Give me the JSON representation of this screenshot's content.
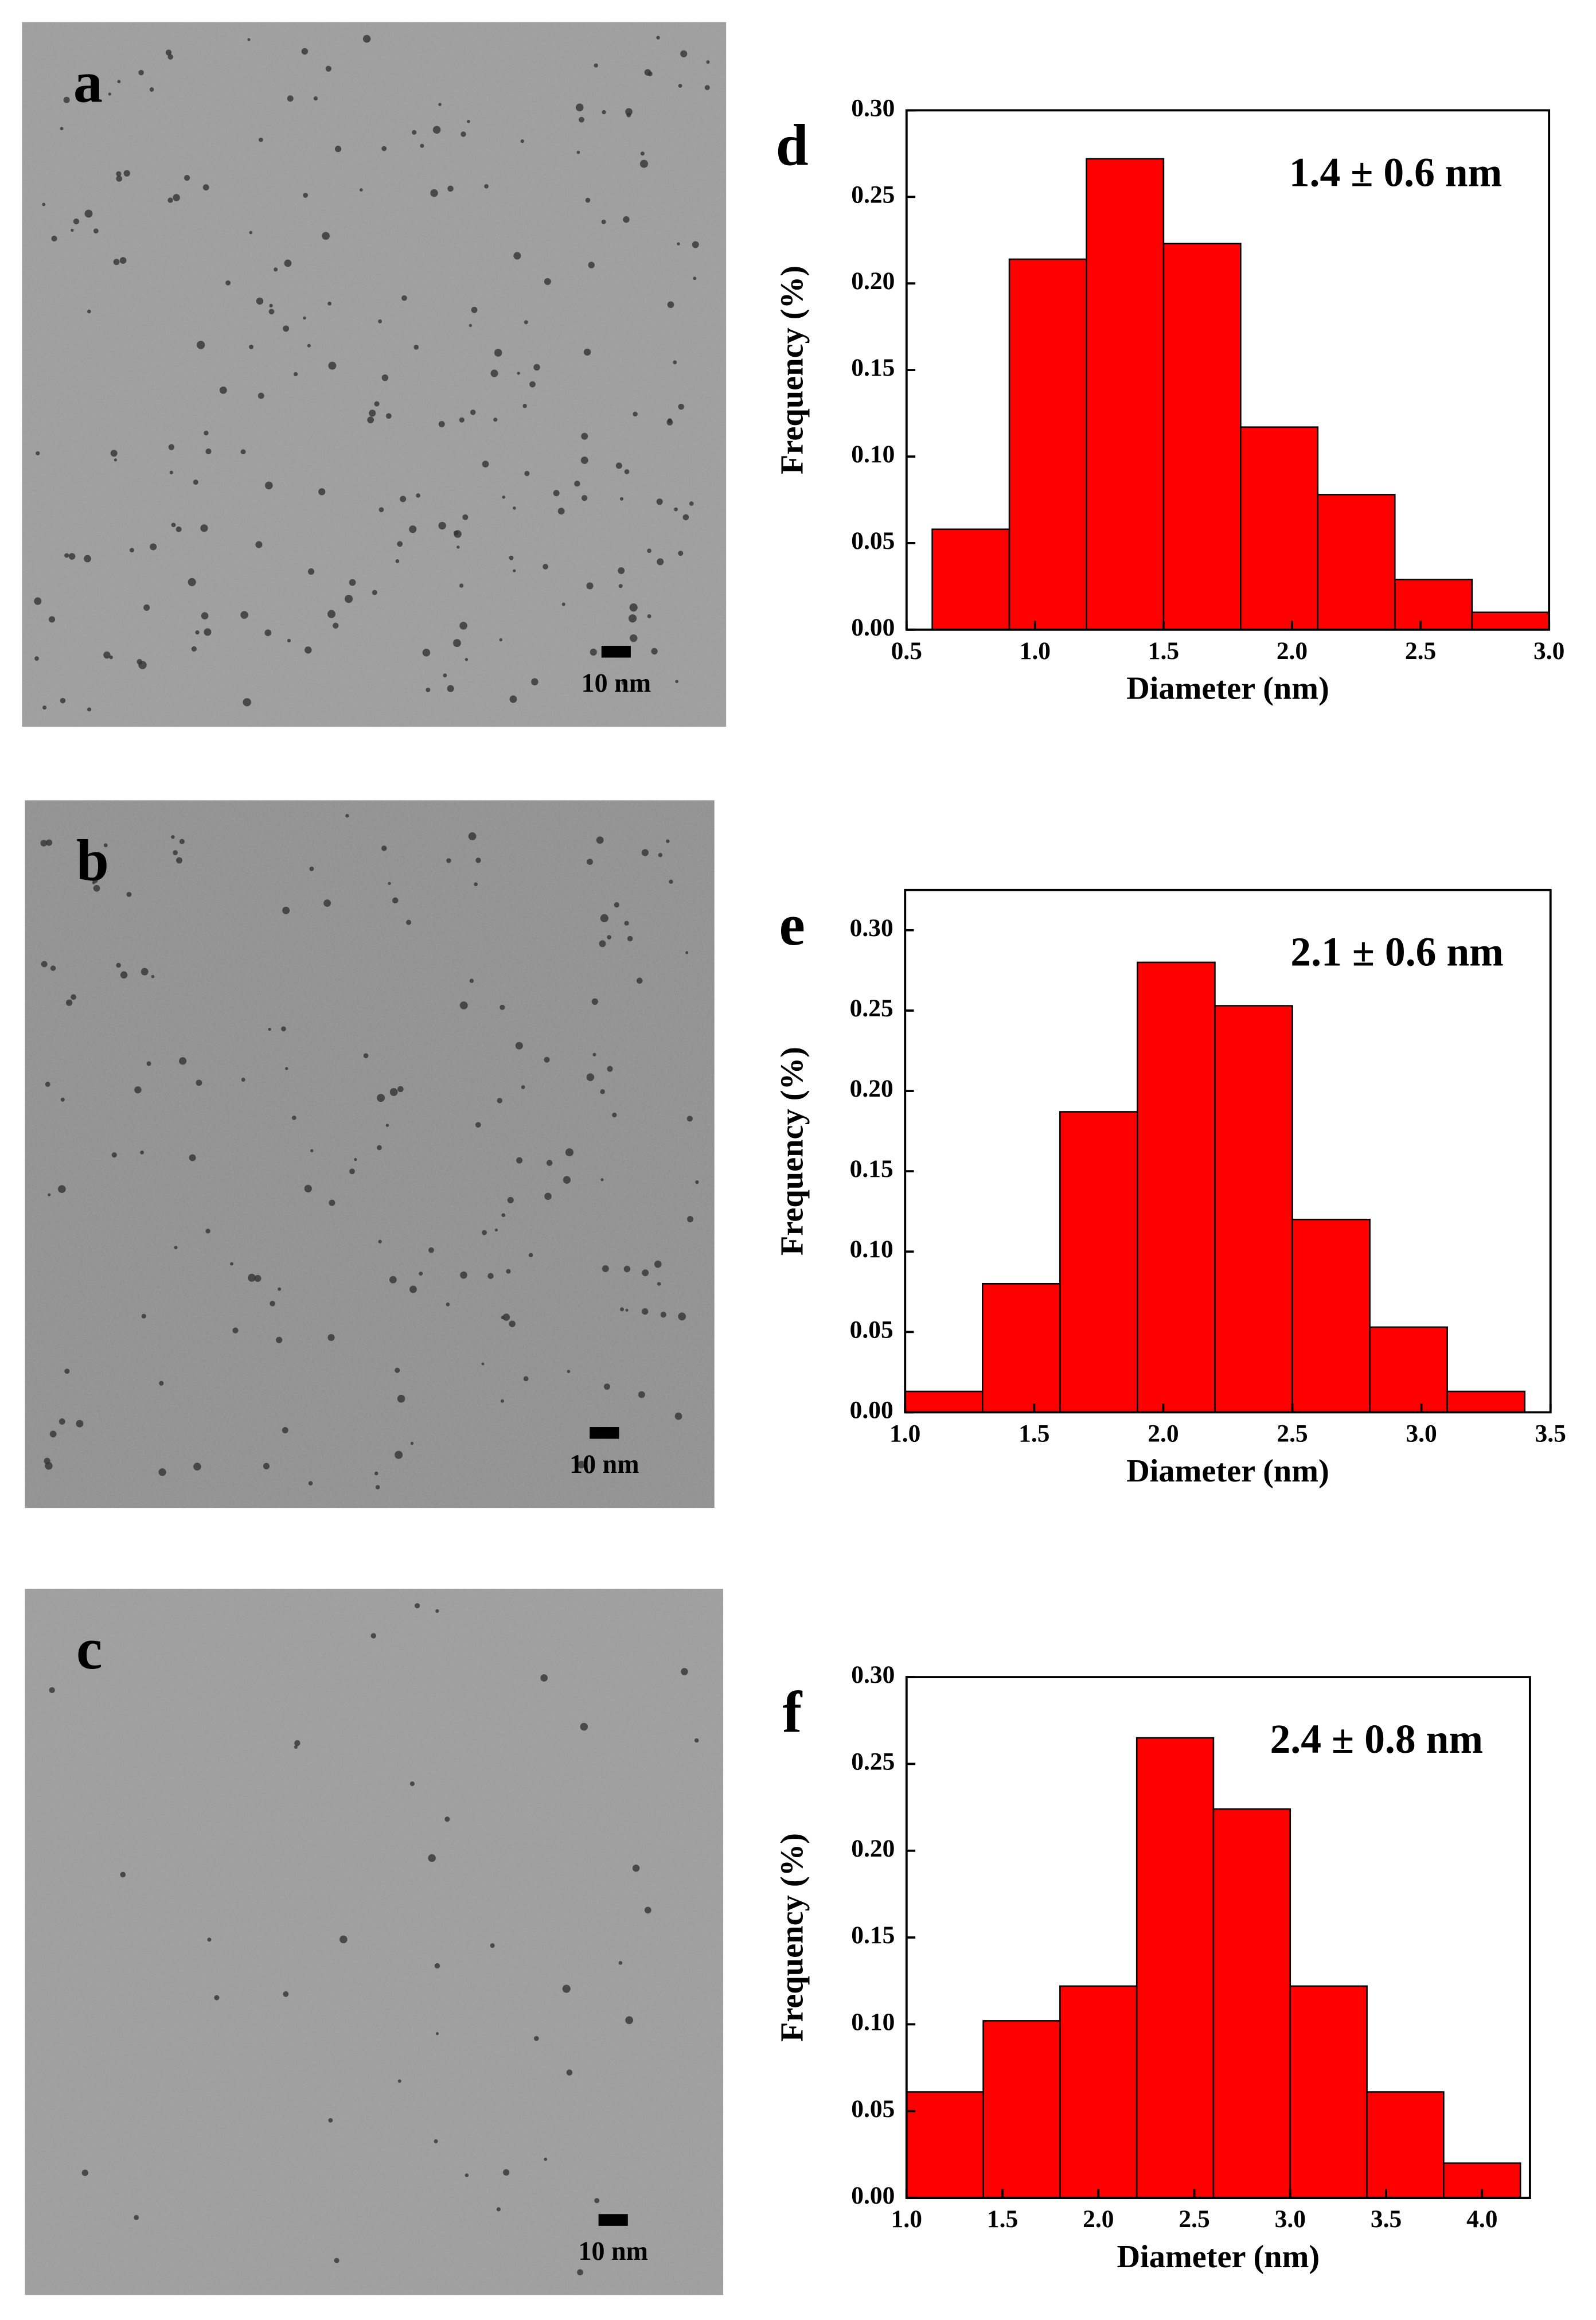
{
  "images": [
    {
      "label": "a",
      "scale_bar": "10 nm"
    },
    {
      "label": "b",
      "scale_bar": "10 nm"
    },
    {
      "label": "c",
      "scale_bar": "10 nm"
    }
  ],
  "chart_data": [
    {
      "type": "histogram",
      "panel_label": "d",
      "annotation": "1.4 ± 0.6 nm",
      "xlabel": "Diameter (nm)",
      "ylabel": "Frequency (%)",
      "color": "#ff0000",
      "bins": [
        0.6,
        0.9,
        1.2,
        1.5,
        1.8,
        2.1,
        2.4,
        2.7,
        3.0
      ],
      "values": [
        0.058,
        0.214,
        0.272,
        0.223,
        0.117,
        0.078,
        0.029,
        0.01
      ],
      "xlim": [
        0.5,
        3.0
      ],
      "xticks": [
        0.5,
        {
          "value": 1,
          "label": "1.0"
        },
        1.5,
        {
          "value": 2,
          "label": "2.0"
        },
        2.5,
        {
          "value": 3,
          "label": "3.0"
        }
      ],
      "ylim": [
        0,
        0.3
      ],
      "yticks": [
        {
          "value": 0,
          "label": "0.00"
        },
        0.05,
        {
          "value": 0.1,
          "label": "0.10"
        },
        0.15,
        {
          "value": 0.2,
          "label": "0.20"
        },
        0.25,
        {
          "value": 0.3,
          "label": "0.30"
        }
      ]
    },
    {
      "type": "histogram",
      "panel_label": "e",
      "annotation": "2.1 ± 0.6 nm",
      "xlabel": "Diameter (nm)",
      "ylabel": "Frequency (%)",
      "color": "#ff0000",
      "bins": [
        1.0,
        1.3,
        1.6,
        1.9,
        2.2,
        2.5,
        2.8,
        3.1,
        3.4
      ],
      "values": [
        0.013,
        0.08,
        0.187,
        0.28,
        0.253,
        0.12,
        0.053,
        0.013
      ],
      "xlim": [
        1.0,
        3.5
      ],
      "xticks": [
        {
          "value": 1,
          "label": "1.0"
        },
        1.5,
        {
          "value": 2,
          "label": "2.0"
        },
        2.5,
        {
          "value": 3,
          "label": "3.0"
        },
        3.5
      ],
      "ylim": [
        0,
        0.325
      ],
      "yticks": [
        {
          "value": 0,
          "label": "0.00"
        },
        0.05,
        {
          "value": 0.1,
          "label": "0.10"
        },
        0.15,
        {
          "value": 0.2,
          "label": "0.20"
        },
        0.25,
        {
          "value": 0.3,
          "label": "0.30"
        }
      ]
    },
    {
      "type": "histogram",
      "panel_label": "f",
      "annotation": "2.4 ± 0.8 nm",
      "xlabel": "Diameter (nm)",
      "ylabel": "Frequency (%)",
      "color": "#ff0000",
      "bins": [
        1.0,
        1.4,
        1.8,
        2.2,
        2.6,
        3.0,
        3.4,
        3.8,
        4.2
      ],
      "values": [
        0.061,
        0.102,
        0.122,
        0.265,
        0.224,
        0.122,
        0.061,
        0.02
      ],
      "xlim": [
        1.0,
        4.25
      ],
      "xticks": [
        {
          "value": 1,
          "label": "1.0"
        },
        1.5,
        {
          "value": 2,
          "label": "2.0"
        },
        2.5,
        {
          "value": 3,
          "label": "3.0"
        },
        3.5,
        {
          "value": 4,
          "label": "4.0"
        }
      ],
      "ylim": [
        0,
        0.3
      ],
      "yticks": [
        {
          "value": 0,
          "label": "0.00"
        },
        0.05,
        {
          "value": 0.1,
          "label": "0.10"
        },
        0.15,
        {
          "value": 0.2,
          "label": "0.20"
        },
        0.25,
        {
          "value": 0.3,
          "label": "0.30"
        }
      ]
    }
  ]
}
